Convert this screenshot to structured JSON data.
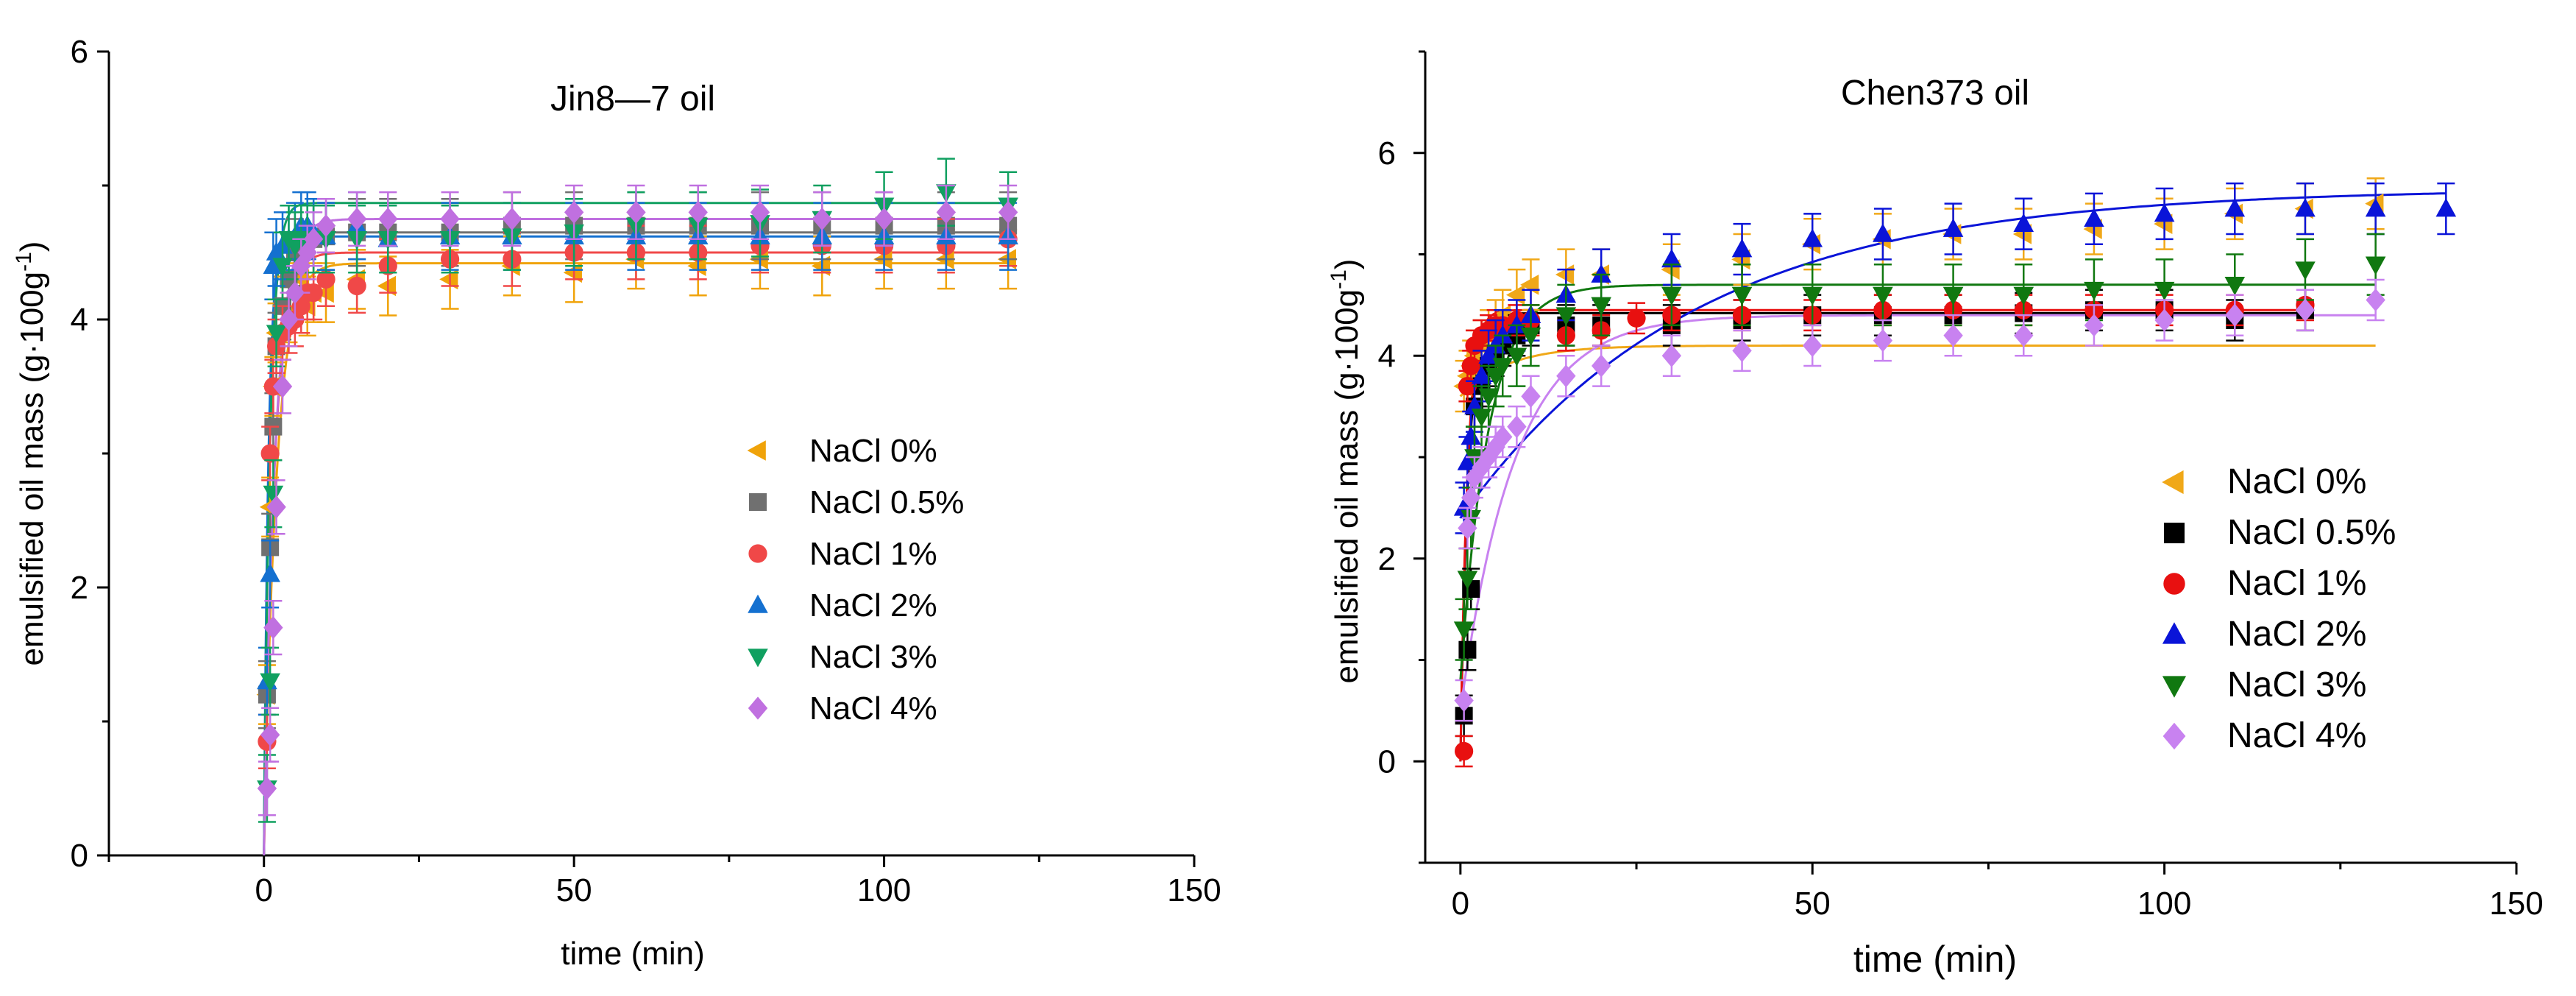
{
  "chart_data": [
    {
      "type": "scatter",
      "title": "Jin8—7 oil",
      "xlabel": "time (min)",
      "ylabel_main": "emulsified oil mass (g·100g",
      "ylabel_sup": "-1",
      "ylabel_tail": ")",
      "xlim": [
        -25,
        150
      ],
      "ylim": [
        0,
        6
      ],
      "xticks": [
        0,
        50,
        100,
        150
      ],
      "yticks": [
        0,
        2,
        4,
        6
      ],
      "legend_position": "center-right",
      "series": [
        {
          "name": "NaCl 0%",
          "color": "#f0a30a",
          "marker": "triangle-left",
          "plateau": 4.42,
          "k": 0.5,
          "x": [
            0.5,
            1,
            1.5,
            2,
            3,
            4,
            5,
            6,
            7,
            8,
            10,
            15,
            20,
            30,
            40,
            50,
            60,
            70,
            80,
            90,
            100,
            110,
            120
          ],
          "y": [
            1.2,
            2.6,
            3.5,
            3.9,
            4.1,
            4.05,
            4.2,
            4.3,
            4.1,
            4.2,
            4.2,
            4.3,
            4.25,
            4.3,
            4.4,
            4.35,
            4.45,
            4.4,
            4.45,
            4.4,
            4.45,
            4.45,
            4.45
          ],
          "err": 0.22
        },
        {
          "name": "NaCl 0.5%",
          "color": "#707070",
          "marker": "square",
          "plateau": 4.65,
          "k": 1.2,
          "x": [
            0.5,
            1,
            1.5,
            2,
            3,
            4,
            5,
            6,
            7,
            8,
            10,
            15,
            20,
            30,
            40,
            50,
            60,
            70,
            80,
            90,
            100,
            110,
            120
          ],
          "y": [
            1.2,
            2.3,
            3.2,
            3.8,
            4.1,
            4.3,
            4.5,
            4.6,
            4.6,
            4.6,
            4.62,
            4.65,
            4.65,
            4.65,
            4.7,
            4.7,
            4.7,
            4.7,
            4.7,
            4.7,
            4.7,
            4.7,
            4.7
          ],
          "err": 0.25
        },
        {
          "name": "NaCl 1%",
          "color": "#f04848",
          "marker": "circle",
          "plateau": 4.5,
          "k": 0.6,
          "x": [
            0.5,
            1,
            1.5,
            2,
            3,
            4,
            5,
            6,
            7,
            8,
            10,
            15,
            20,
            30,
            40,
            50,
            60,
            70,
            80,
            90,
            100,
            110,
            120
          ],
          "y": [
            0.85,
            3.0,
            3.5,
            3.8,
            3.9,
            3.95,
            4.0,
            4.1,
            4.2,
            4.2,
            4.3,
            4.25,
            4.4,
            4.45,
            4.45,
            4.5,
            4.5,
            4.5,
            4.55,
            4.55,
            4.55,
            4.55,
            4.6
          ],
          "err": 0.2
        },
        {
          "name": "NaCl 2%",
          "color": "#1470d0",
          "marker": "triangle-up",
          "plateau": 4.62,
          "k": 1.4,
          "x": [
            0.5,
            1,
            1.5,
            2,
            3,
            4,
            5,
            6,
            7,
            8,
            10,
            15,
            20,
            30,
            40,
            50,
            60,
            70,
            80,
            90,
            100,
            110,
            120
          ],
          "y": [
            1.3,
            2.1,
            4.4,
            4.5,
            4.55,
            4.6,
            4.62,
            4.7,
            4.7,
            4.65,
            4.62,
            4.7,
            4.6,
            4.62,
            4.62,
            4.62,
            4.62,
            4.62,
            4.62,
            4.62,
            4.62,
            4.62,
            4.62
          ],
          "err": 0.25
        },
        {
          "name": "NaCl 3%",
          "color": "#10a060",
          "marker": "triangle-down",
          "plateau": 4.87,
          "k": 1.0,
          "x": [
            0.5,
            1,
            1.5,
            2,
            3,
            4,
            5,
            6,
            7,
            8,
            10,
            15,
            20,
            30,
            40,
            50,
            60,
            70,
            80,
            90,
            100,
            110,
            120
          ],
          "y": [
            0.5,
            1.3,
            2.7,
            3.9,
            4.4,
            4.6,
            4.55,
            4.6,
            4.6,
            4.6,
            4.6,
            4.6,
            4.6,
            4.6,
            4.62,
            4.65,
            4.7,
            4.7,
            4.72,
            4.75,
            4.85,
            4.95,
            4.85
          ],
          "err": 0.25
        },
        {
          "name": "NaCl 4%",
          "color": "#c070e0",
          "marker": "diamond",
          "plateau": 4.75,
          "k": 0.55,
          "x": [
            0.5,
            1,
            1.5,
            2,
            3,
            4,
            5,
            6,
            7,
            8,
            10,
            15,
            20,
            30,
            40,
            50,
            60,
            70,
            80,
            90,
            100,
            110,
            120
          ],
          "y": [
            0.5,
            0.9,
            1.7,
            2.6,
            3.5,
            4.0,
            4.2,
            4.4,
            4.5,
            4.6,
            4.7,
            4.75,
            4.75,
            4.75,
            4.75,
            4.8,
            4.8,
            4.8,
            4.8,
            4.75,
            4.75,
            4.8,
            4.8
          ],
          "err": 0.2
        }
      ]
    },
    {
      "type": "scatter",
      "title": "Chen373 oil",
      "xlabel": "time (min)",
      "ylabel_main": "emulsified oil mass (g·100g",
      "ylabel_sup": "-1",
      "ylabel_tail": ")",
      "xlim": [
        -5,
        150
      ],
      "ylim": [
        -1,
        7
      ],
      "xticks": [
        0,
        50,
        100,
        150
      ],
      "yticks": [
        0,
        2,
        4,
        6
      ],
      "legend_position": "bottom-right",
      "series": [
        {
          "name": "NaCl 0%",
          "color": "#f0a818",
          "marker": "triangle-left",
          "y0": 3.6,
          "plateau": 4.1,
          "k": 0.15,
          "x": [
            0.5,
            1,
            1.5,
            2,
            3,
            4,
            5,
            6,
            8,
            10,
            15,
            20,
            30,
            40,
            50,
            60,
            70,
            80,
            90,
            100,
            110,
            120,
            130
          ],
          "y": [
            3.7,
            3.8,
            3.9,
            4.0,
            4.1,
            4.2,
            4.3,
            4.4,
            4.6,
            4.7,
            4.8,
            4.8,
            4.85,
            4.95,
            5.1,
            5.15,
            5.2,
            5.2,
            5.25,
            5.3,
            5.4,
            5.45,
            5.5
          ],
          "err": 0.25
        },
        {
          "name": "NaCl 0.5%",
          "color": "#000000",
          "marker": "square",
          "y0": 0.0,
          "plateau": 4.42,
          "k": 0.9,
          "x": [
            0.5,
            1,
            1.5,
            2,
            3,
            4,
            5,
            6,
            8,
            10,
            15,
            20,
            30,
            40,
            50,
            60,
            70,
            80,
            90,
            100,
            110,
            120
          ],
          "y": [
            0.45,
            1.1,
            1.7,
            3.5,
            3.7,
            3.9,
            4.0,
            4.1,
            4.2,
            4.3,
            4.3,
            4.3,
            4.3,
            4.35,
            4.4,
            4.4,
            4.4,
            4.42,
            4.45,
            4.45,
            4.35,
            4.45
          ],
          "err": 0.2
        },
        {
          "name": "NaCl 1%",
          "color": "#e81010",
          "marker": "circle",
          "y0": 0.0,
          "plateau": 4.45,
          "k": 1.0,
          "x": [
            0.5,
            1,
            1.5,
            2,
            3,
            4,
            5,
            6,
            8,
            10,
            15,
            20,
            25,
            30,
            40,
            50,
            60,
            70,
            80,
            90,
            100,
            110,
            120
          ],
          "y": [
            0.1,
            3.7,
            3.9,
            4.1,
            4.2,
            4.25,
            4.3,
            4.3,
            4.35,
            4.35,
            4.2,
            4.25,
            4.37,
            4.4,
            4.4,
            4.4,
            4.45,
            4.45,
            4.45,
            4.45,
            4.45,
            4.45,
            4.5
          ],
          "err": 0.15
        },
        {
          "name": "NaCl 2%",
          "color": "#0a14d8",
          "marker": "triangle-up",
          "y0": 2.4,
          "plateau": 5.65,
          "k": 0.03,
          "x": [
            0.5,
            1,
            1.5,
            2,
            3,
            4,
            5,
            6,
            8,
            10,
            15,
            20,
            30,
            40,
            50,
            60,
            70,
            80,
            90,
            100,
            110,
            120,
            130,
            140
          ],
          "y": [
            2.5,
            2.95,
            3.2,
            3.5,
            3.8,
            4.0,
            4.1,
            4.2,
            4.3,
            4.4,
            4.6,
            4.8,
            4.95,
            5.05,
            5.15,
            5.2,
            5.25,
            5.3,
            5.35,
            5.4,
            5.45,
            5.45,
            5.45,
            5.45
          ],
          "err": 0.25
        },
        {
          "name": "NaCl 3%",
          "color": "#107810",
          "marker": "triangle-down",
          "y0": 0.8,
          "plateau": 4.7,
          "k": 0.25,
          "x": [
            0.5,
            1,
            1.5,
            2,
            3,
            4,
            5,
            6,
            8,
            10,
            15,
            20,
            30,
            40,
            50,
            60,
            70,
            80,
            90,
            100,
            110,
            120,
            130
          ],
          "y": [
            1.3,
            1.8,
            2.4,
            3.0,
            3.4,
            3.6,
            3.8,
            3.9,
            4.0,
            4.2,
            4.4,
            4.5,
            4.6,
            4.6,
            4.6,
            4.6,
            4.6,
            4.6,
            4.65,
            4.65,
            4.7,
            4.85,
            4.9
          ],
          "err": 0.3
        },
        {
          "name": "NaCl 4%",
          "color": "#c882f0",
          "marker": "diamond",
          "y0": 0.5,
          "plateau": 4.4,
          "k": 0.13,
          "x": [
            0.5,
            1,
            1.5,
            2,
            3,
            4,
            5,
            6,
            8,
            10,
            15,
            20,
            30,
            40,
            50,
            60,
            70,
            80,
            90,
            100,
            110,
            120,
            130
          ],
          "y": [
            0.6,
            2.3,
            2.6,
            2.8,
            2.9,
            3.0,
            3.1,
            3.2,
            3.3,
            3.6,
            3.8,
            3.9,
            4.0,
            4.05,
            4.1,
            4.15,
            4.2,
            4.2,
            4.3,
            4.35,
            4.4,
            4.45,
            4.55
          ],
          "err": 0.2
        }
      ]
    }
  ]
}
